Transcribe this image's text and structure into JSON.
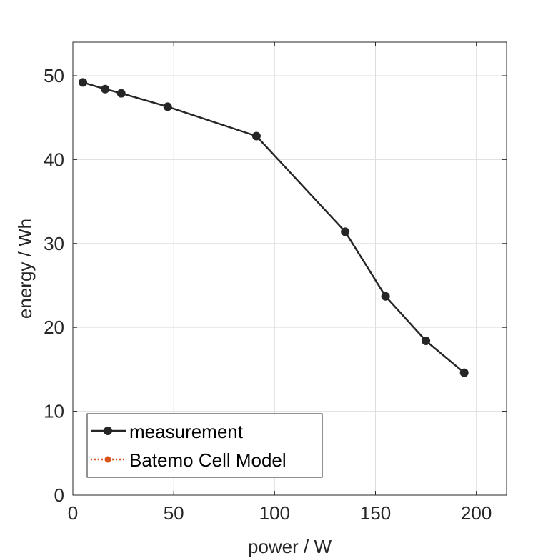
{
  "chart_data": {
    "type": "line",
    "xlabel": "power / W",
    "ylabel": "energy / Wh",
    "xlim": [
      0,
      215
    ],
    "ylim": [
      0,
      54
    ],
    "xticks": [
      0,
      50,
      100,
      150,
      200
    ],
    "yticks": [
      0,
      10,
      20,
      30,
      40,
      50
    ],
    "grid": true,
    "legend_position": "bottom-left",
    "series": [
      {
        "name": "measurement",
        "color": "#262626",
        "line_style": "solid",
        "marker": "circle",
        "x": [
          5,
          16,
          24,
          47,
          91,
          135,
          155,
          175,
          194
        ],
        "y": [
          49.2,
          48.4,
          47.9,
          46.3,
          42.8,
          31.4,
          23.7,
          18.4,
          14.6
        ]
      },
      {
        "name": "Batemo Cell Model",
        "color": "#D95319",
        "line_style": "dotted",
        "marker": "circle",
        "x": [],
        "y": []
      }
    ]
  }
}
